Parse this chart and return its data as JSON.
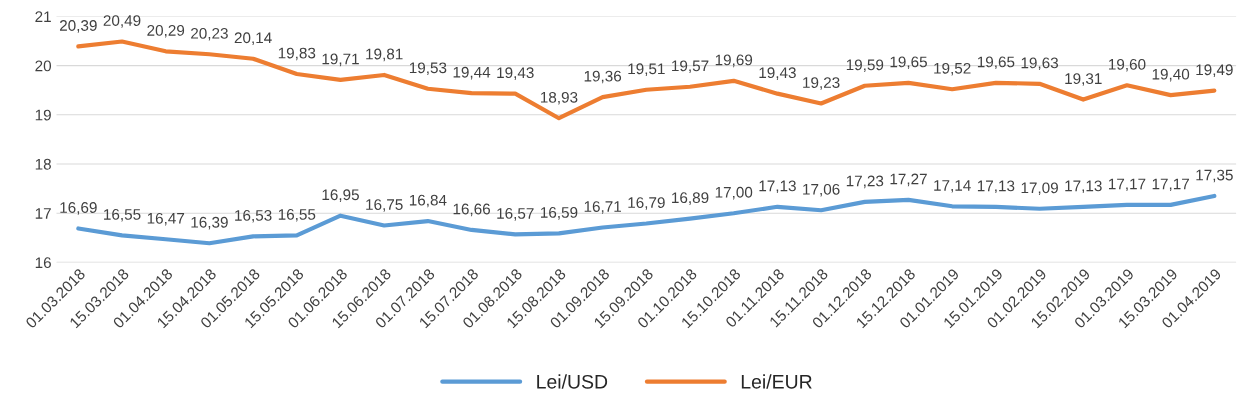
{
  "chart_data": {
    "type": "line",
    "categories": [
      "01.03.2018",
      "15.03.2018",
      "01.04.2018",
      "15.04.2018",
      "01.05.2018",
      "15.05.2018",
      "01.06.2018",
      "15.06.2018",
      "01.07.2018",
      "15.07.2018",
      "01.08.2018",
      "15.08.2018",
      "01.09.2018",
      "15.09.2018",
      "01.10.2018",
      "15.10.2018",
      "01.11.2018",
      "15.11.2018",
      "01.12.2018",
      "15.12.2018",
      "01.01.2019",
      "15.01.2019",
      "01.02.2019",
      "15.02.2019",
      "01.03.2019",
      "15.03.2019",
      "01.04.2019"
    ],
    "series": [
      {
        "name": "Lei/USD",
        "color": "#5b9bd5",
        "values": [
          16.69,
          16.55,
          16.47,
          16.39,
          16.53,
          16.55,
          16.95,
          16.75,
          16.84,
          16.66,
          16.57,
          16.59,
          16.71,
          16.79,
          16.89,
          17.0,
          17.13,
          17.06,
          17.23,
          17.27,
          17.14,
          17.13,
          17.09,
          17.13,
          17.17,
          17.17,
          17.35
        ],
        "value_labels": [
          "16,69",
          "16,55",
          "16,47",
          "16,39",
          "16,53",
          "16,55",
          "16,95",
          "16,75",
          "16,84",
          "16,66",
          "16,57",
          "16,59",
          "16,71",
          "16,79",
          "16,89",
          "17,00",
          "17,13",
          "17,06",
          "17,23",
          "17,27",
          "17,14",
          "17,13",
          "17,09",
          "17,13",
          "17,17",
          "17,17",
          "17,35"
        ]
      },
      {
        "name": "Lei/EUR",
        "color": "#ed7d31",
        "values": [
          20.39,
          20.49,
          20.29,
          20.23,
          20.14,
          19.83,
          19.71,
          19.81,
          19.53,
          19.44,
          19.43,
          18.93,
          19.36,
          19.51,
          19.57,
          19.69,
          19.43,
          19.23,
          19.59,
          19.65,
          19.52,
          19.65,
          19.63,
          19.31,
          19.6,
          19.4,
          19.49
        ],
        "value_labels": [
          "20,39",
          "20,49",
          "20,29",
          "20,23",
          "20,14",
          "19,83",
          "19,71",
          "19,81",
          "19,53",
          "19,44",
          "19,43",
          "18,93",
          "19,36",
          "19,51",
          "19,57",
          "19,69",
          "19,43",
          "19,23",
          "19,59",
          "19,65",
          "19,52",
          "19,65",
          "19,63",
          "19,31",
          "19,60",
          "19,40",
          "19,49"
        ]
      }
    ],
    "ylim": [
      16,
      21
    ],
    "yticks": [
      16,
      17,
      18,
      19,
      20,
      21
    ],
    "grid": "y",
    "legend": "bottom",
    "marker": "none",
    "line_style": "solid"
  }
}
